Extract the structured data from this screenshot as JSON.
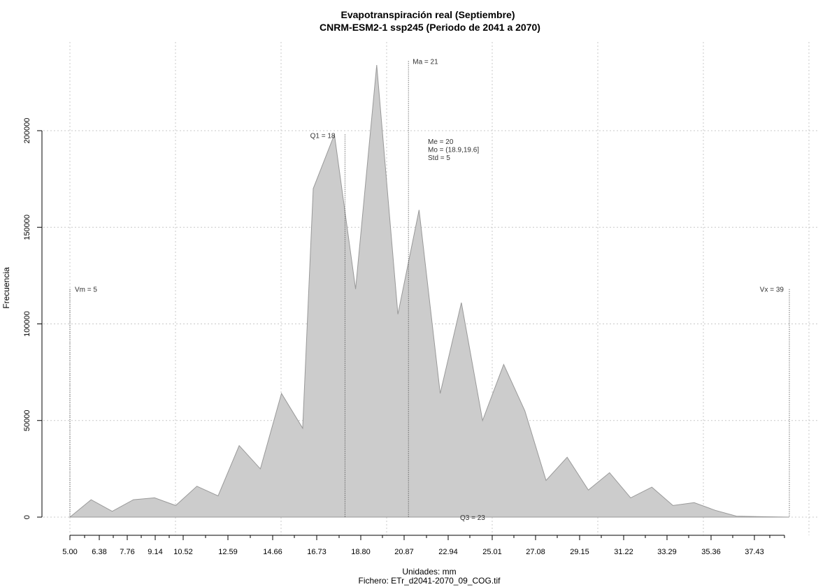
{
  "chart_data": {
    "type": "area",
    "title": "Evapotranspiración real (Septiembre)",
    "subtitle": "CNRM-ESM2-1 ssp245 (Periodo de 2041 a 2070)",
    "xlabel": "Unidades: mm",
    "caption": "Fichero: ETr_d2041-2070_09_COG.tif",
    "ylabel": "Frecuencia",
    "xlim": [
      5.0,
      39.0
    ],
    "ylim": [
      0,
      240000
    ],
    "x_tick_labels": [
      "5.00",
      "6.38",
      "7.76",
      "9.14",
      "10.52",
      "12.59",
      "14.66",
      "16.73",
      "18.80",
      "20.87",
      "22.94",
      "25.01",
      "27.08",
      "29.15",
      "31.22",
      "33.29",
      "35.36",
      "37.43"
    ],
    "y_tick_values": [
      0,
      50000,
      100000,
      150000,
      200000
    ],
    "y_tick_labels": [
      "0",
      "50000",
      "100000",
      "150000",
      "200000"
    ],
    "grid": true,
    "fill_color": "#cccccc",
    "line_color": "#999999",
    "x": [
      5.0,
      6.0,
      7.0,
      8.0,
      9.0,
      10.0,
      11.0,
      12.0,
      13.0,
      14.0,
      15.0,
      16.0,
      16.5,
      17.5,
      18.5,
      19.5,
      20.5,
      21.5,
      22.5,
      23.5,
      24.5,
      25.5,
      26.5,
      27.5,
      28.5,
      29.5,
      30.5,
      31.5,
      32.5,
      33.5,
      34.5,
      35.5,
      36.5,
      37.5,
      38.5,
      39.0
    ],
    "y": [
      0,
      9000,
      3000,
      9000,
      10000,
      6000,
      16000,
      11000,
      37000,
      25000,
      64000,
      46000,
      170000,
      198000,
      118000,
      234000,
      105000,
      159000,
      64000,
      111000,
      50000,
      79000,
      55000,
      19000,
      31000,
      14000,
      23000,
      10000,
      15500,
      6000,
      7500,
      3500,
      500,
      300,
      100,
      0
    ],
    "reference_lines": [
      {
        "label": "Vm = 5",
        "x": 5.0,
        "y_top": 118000
      },
      {
        "label": "Q1 = 18",
        "x": 18.0,
        "y_top": 198000
      },
      {
        "label": "Ma = 21",
        "x": 21.0,
        "y_top": 236000
      },
      {
        "label": "Vx = 39",
        "x": 39.0,
        "y_top": 118000
      }
    ],
    "stats_annotation": [
      "Me = 20",
      "Mo = (18.9,19.6]",
      "Std = 5"
    ],
    "q3_label": "Q3 = 23"
  }
}
